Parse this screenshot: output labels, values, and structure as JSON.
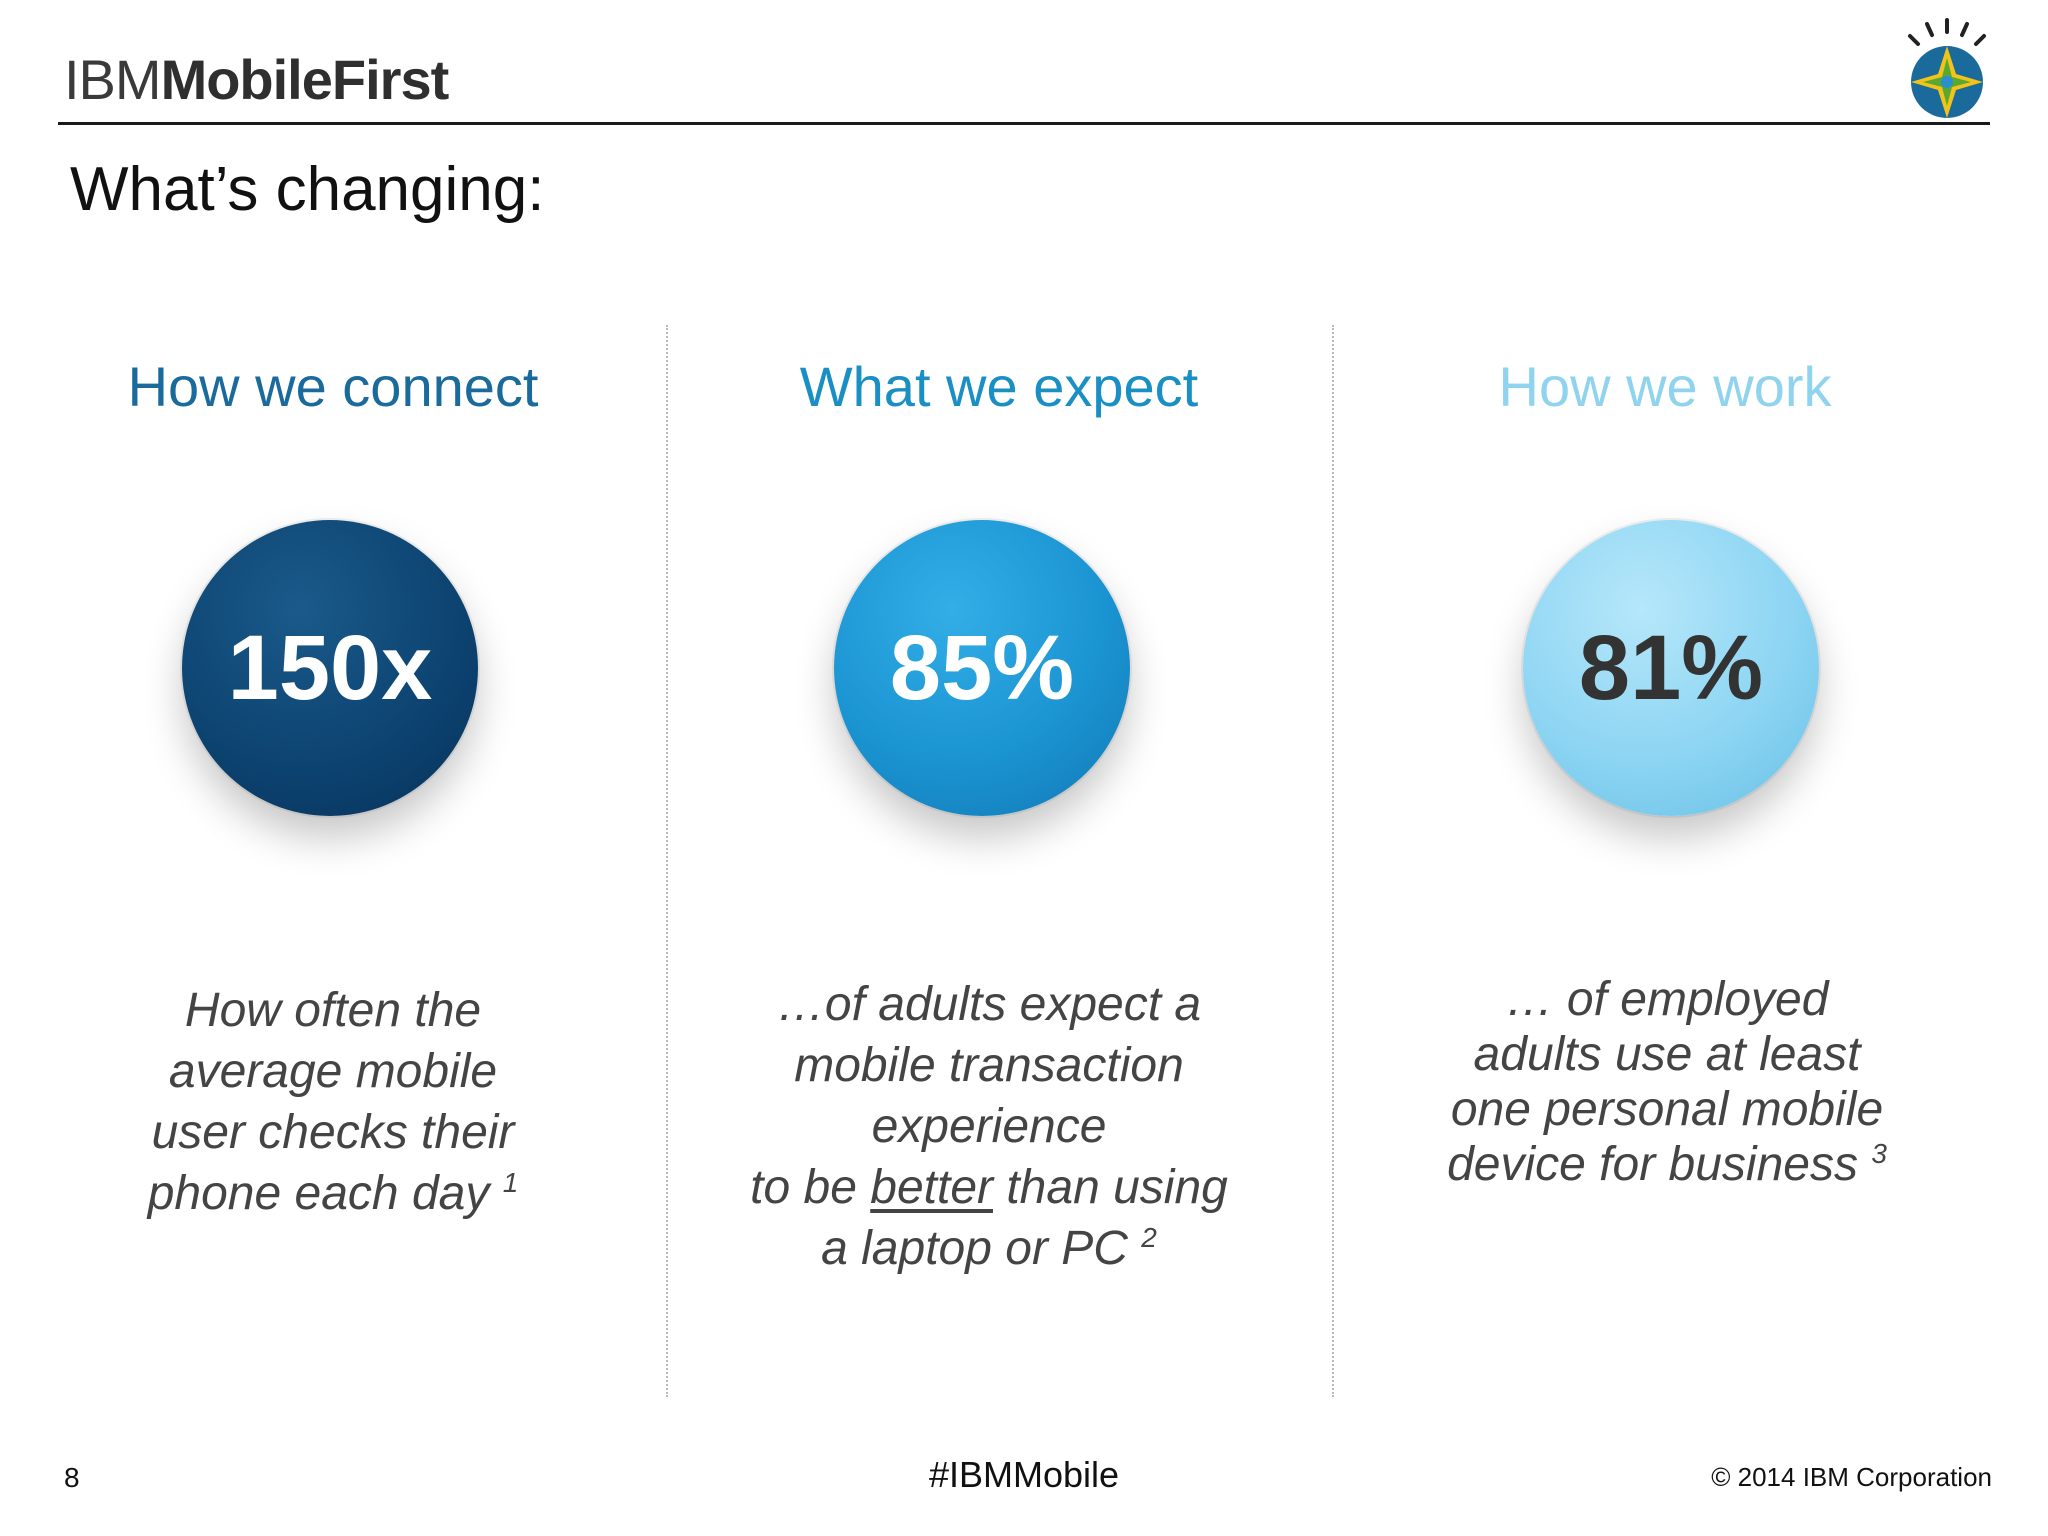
{
  "header": {
    "brand_prefix": "IBM",
    "brand_name": "MobileFirst",
    "title": "What’s changing:"
  },
  "columns": [
    {
      "heading": "How we connect",
      "stat": "150x",
      "desc_lines": [
        "How often the",
        "average mobile",
        "user checks their",
        "phone each day"
      ],
      "footnote": "1",
      "color": "#0d4472"
    },
    {
      "heading": "What we expect",
      "stat": "85%",
      "desc_lines": [
        "…of adults expect a",
        "mobile transaction",
        "experience"
      ],
      "desc_line4_before": "to be ",
      "desc_line4_underlined": "better",
      "desc_line4_after": " than using",
      "desc_line5": "a laptop or PC",
      "footnote": "2",
      "color": "#1b94d2"
    },
    {
      "heading": "How we work",
      "stat": "81%",
      "desc_lines": [
        "… of employed",
        "adults use at least",
        "one personal mobile",
        "device for business"
      ],
      "footnote": "3",
      "color": "#8dd5f3"
    }
  ],
  "footer": {
    "page_number": "8",
    "hashtag": "#IBMMobile",
    "copyright": "© 2014 IBM Corporation"
  }
}
